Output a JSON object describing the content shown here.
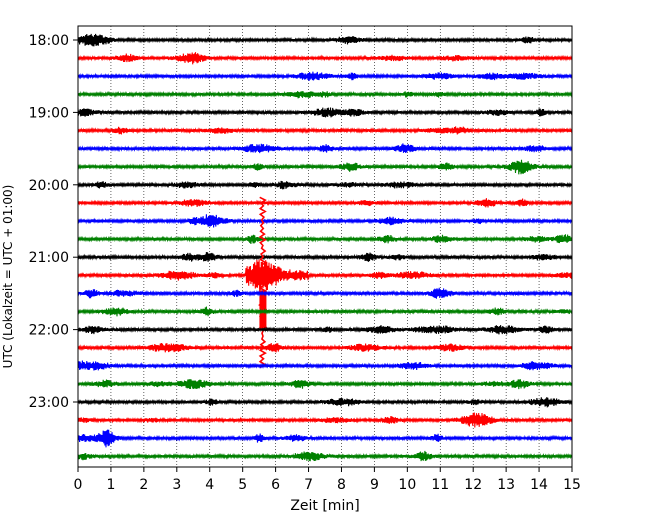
{
  "chart_data": {
    "type": "line",
    "title": "",
    "xlabel": "Zeit  [min]",
    "ylabel": "UTC (Lokalzeit = UTC + 01:00)",
    "xlim": [
      0,
      15
    ],
    "x_ticks": [
      0,
      1,
      2,
      3,
      4,
      5,
      6,
      7,
      8,
      9,
      10,
      11,
      12,
      13,
      14,
      15
    ],
    "x_tick_labels": [
      "0",
      "1",
      "2",
      "3",
      "4",
      "5",
      "6",
      "7",
      "8",
      "9",
      "10",
      "11",
      "12",
      "13",
      "14",
      "15"
    ],
    "y_tick_labels": [
      "18:00",
      "19:00",
      "20:00",
      "21:00",
      "22:00",
      "23:00"
    ],
    "y_tick_trace_index": [
      0,
      4,
      8,
      12,
      16,
      20
    ],
    "trace_minutes": 15,
    "trace_colors": [
      "#000000",
      "#ff0000",
      "#0000ff",
      "#008000"
    ],
    "traces": [
      {
        "start": "18:00"
      },
      {
        "start": "18:15"
      },
      {
        "start": "18:30"
      },
      {
        "start": "18:45"
      },
      {
        "start": "19:00"
      },
      {
        "start": "19:15"
      },
      {
        "start": "19:30"
      },
      {
        "start": "19:45"
      },
      {
        "start": "20:00"
      },
      {
        "start": "20:15"
      },
      {
        "start": "20:30"
      },
      {
        "start": "20:45"
      },
      {
        "start": "21:00"
      },
      {
        "start": "21:15"
      },
      {
        "start": "21:30"
      },
      {
        "start": "21:45"
      },
      {
        "start": "22:00"
      },
      {
        "start": "22:15"
      },
      {
        "start": "22:30"
      },
      {
        "start": "22:45"
      },
      {
        "start": "23:00"
      },
      {
        "start": "23:15"
      },
      {
        "start": "23:30"
      },
      {
        "start": "23:45"
      }
    ],
    "event": {
      "trace_start": "21:15",
      "minute": 5.6
    },
    "grid": "vertical-dotted"
  }
}
